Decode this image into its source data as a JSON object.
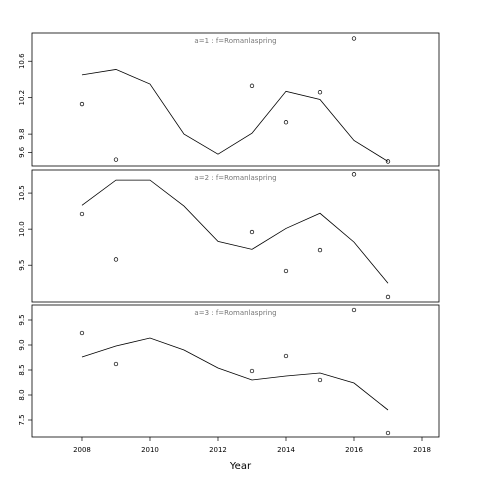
{
  "chart_data": [
    {
      "type": "line",
      "title": "a=1 : f=Romanlaspring",
      "x": [
        2008,
        2009,
        2010,
        2011,
        2012,
        2013,
        2014,
        2015,
        2016,
        2017
      ],
      "xlim": [
        2006.53,
        2018.5
      ],
      "ylim": [
        9.45,
        10.91
      ],
      "yticks": [
        9.6,
        9.8,
        10.2,
        10.6
      ],
      "series": [
        {
          "style": "points",
          "color": "#000000",
          "values": [
            10.13,
            9.52,
            null,
            null,
            null,
            10.33,
            9.93,
            10.26,
            10.85,
            9.5
          ]
        },
        {
          "style": "line",
          "color": "#000000",
          "values": [
            10.45,
            10.51,
            10.35,
            9.8,
            9.58,
            9.81,
            10.27,
            10.18,
            9.73,
            9.5
          ]
        }
      ]
    },
    {
      "type": "line",
      "title": "a=2 : f=Romanlaspring",
      "x": [
        2008,
        2009,
        2010,
        2011,
        2012,
        2013,
        2014,
        2015,
        2016,
        2017
      ],
      "xlim": [
        2006.53,
        2018.5
      ],
      "ylim": [
        8.99,
        10.82
      ],
      "yticks": [
        9.5,
        10.0,
        10.5
      ],
      "ytick_labels": [
        "9.5",
        "10.0",
        "10.5"
      ],
      "series": [
        {
          "style": "points",
          "color": "#000000",
          "values": [
            10.21,
            9.58,
            null,
            null,
            null,
            9.96,
            9.42,
            9.71,
            10.76,
            9.06
          ]
        },
        {
          "style": "line",
          "color": "#000000",
          "values": [
            10.33,
            10.68,
            10.68,
            10.32,
            9.83,
            9.72,
            10.01,
            10.22,
            9.82,
            9.25
          ]
        }
      ]
    },
    {
      "type": "line",
      "title": "a=3 : f=Romanlaspring",
      "x_label": "Year",
      "x": [
        2008,
        2009,
        2010,
        2011,
        2012,
        2013,
        2014,
        2015,
        2016,
        2017
      ],
      "xlim": [
        2006.53,
        2018.5
      ],
      "xticks": [
        2008,
        2010,
        2012,
        2014,
        2016,
        2018
      ],
      "ylim": [
        7.16,
        9.8
      ],
      "yticks": [
        7.5,
        8.0,
        8.5,
        9.0,
        9.5
      ],
      "ytick_labels": [
        "7.5",
        "8.0",
        "8.5",
        "9.0",
        "9.5"
      ],
      "series": [
        {
          "style": "points",
          "color": "#000000",
          "values": [
            9.24,
            8.62,
            null,
            null,
            null,
            8.48,
            8.78,
            8.3,
            9.7,
            7.24
          ]
        },
        {
          "style": "line",
          "color": "#000000",
          "values": [
            8.76,
            8.98,
            9.14,
            8.9,
            8.54,
            8.3,
            8.38,
            8.44,
            8.24,
            7.7
          ]
        }
      ]
    }
  ]
}
